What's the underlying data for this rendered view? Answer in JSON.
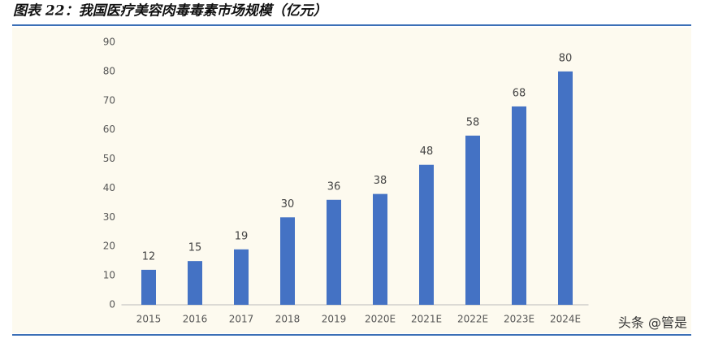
{
  "chart_data": {
    "type": "bar",
    "title": "图表 22：我国医疗美容肉毒毒素市场规模（亿元）",
    "categories": [
      "2015",
      "2016",
      "2017",
      "2018",
      "2019",
      "2020E",
      "2021E",
      "2022E",
      "2023E",
      "2024E"
    ],
    "values": [
      12,
      15,
      19,
      30,
      36,
      38,
      48,
      58,
      68,
      80
    ],
    "color": "#4472c4",
    "ylim": [
      0,
      90
    ],
    "yticks": [
      0,
      10,
      20,
      30,
      40,
      50,
      60,
      70,
      80,
      90
    ],
    "grid": false,
    "watermark": "头条 @管是"
  }
}
